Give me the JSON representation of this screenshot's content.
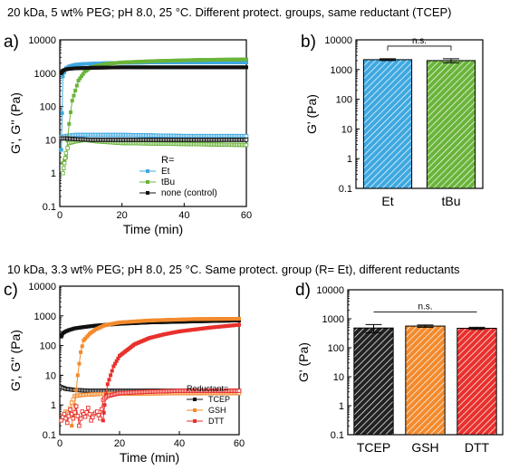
{
  "figure": {
    "row1_condition": "20 kDa, 5 wt% PEG; pH 8.0, 25 °C. Different protect. groups, same reductant (TCEP)",
    "row2_condition": "10 kDa, 3.3 wt% PEG; pH 8.0, 25 °C. Same protect. group (R= Et), different reductants"
  },
  "colors": {
    "Et": "#3ea8e0",
    "tBu": "#6ab43a",
    "none": "#111111",
    "TCEP": "#111111",
    "GSH": "#f38a2c",
    "DTT": "#e8302c"
  },
  "chart_data": [
    {
      "panel": "a)",
      "type": "scatter",
      "xlabel": "Time (min)",
      "ylabel": "G', G'' (Pa)",
      "yscale": "log",
      "xlim": [
        0,
        60
      ],
      "ylim": [
        0.1,
        10000
      ],
      "xticks": [
        "0",
        "20",
        "40",
        "60"
      ],
      "yticks": [
        "0.1",
        "1",
        "10",
        "100",
        "1000",
        "10000"
      ],
      "legend_title": "R=",
      "legend_position": "bottom-right",
      "series": [
        {
          "name": "Et",
          "color_key": "Et",
          "modulus": "G'",
          "marker": "filled",
          "x": [
            0.5,
            1,
            2,
            3,
            5,
            8,
            15,
            30,
            45,
            60
          ],
          "y": [
            5,
            800,
            1400,
            1600,
            1800,
            1900,
            2000,
            2100,
            2100,
            2100
          ]
        },
        {
          "name": "",
          "color_key": "Et",
          "modulus": "G''",
          "marker": "open",
          "x": [
            0.5,
            2,
            5,
            10,
            20,
            40,
            60
          ],
          "y": [
            12,
            13,
            14,
            14,
            14,
            13,
            13
          ]
        },
        {
          "name": "tBu",
          "color_key": "tBu",
          "modulus": "G'",
          "marker": "filled",
          "x": [
            1,
            2,
            3,
            4,
            6,
            8,
            10,
            15,
            20,
            30,
            45,
            60
          ],
          "y": [
            2,
            3,
            30,
            150,
            600,
            1100,
            1500,
            1900,
            2100,
            2300,
            2500,
            2600
          ]
        },
        {
          "name": "",
          "color_key": "tBu",
          "modulus": "G''",
          "marker": "open",
          "x": [
            1,
            1.5,
            2,
            3,
            5,
            8,
            12,
            20,
            40,
            60
          ],
          "y": [
            1,
            2,
            4,
            8,
            9,
            10,
            9,
            8,
            7.5,
            7
          ]
        },
        {
          "name": "none (control)",
          "color_key": "none",
          "modulus": "G'",
          "marker": "filled",
          "x": [
            0.5,
            1,
            2,
            3,
            5,
            10,
            20,
            40,
            60
          ],
          "y": [
            1000,
            1200,
            1300,
            1350,
            1400,
            1450,
            1500,
            1500,
            1500
          ]
        },
        {
          "name": "",
          "color_key": "none",
          "modulus": "G''",
          "marker": "open",
          "x": [
            0.5,
            2,
            5,
            10,
            20,
            40,
            60
          ],
          "y": [
            11,
            11,
            10.5,
            10,
            10,
            10,
            10
          ]
        }
      ]
    },
    {
      "panel": "b)",
      "type": "bar",
      "ylabel": "G' (Pa)",
      "yscale": "log",
      "ylim": [
        0.1,
        10000
      ],
      "yticks": [
        "0.1",
        "1",
        "10",
        "100",
        "1000",
        "10000"
      ],
      "categories": [
        "Et",
        "tBu"
      ],
      "values": [
        2150,
        2000
      ],
      "errors": [
        150,
        300
      ],
      "color_keys": [
        "Et",
        "tBu"
      ],
      "significance": "n.s."
    },
    {
      "panel": "c)",
      "type": "scatter",
      "xlabel": "Time (min)",
      "ylabel": "G', G'' (Pa)",
      "yscale": "log",
      "xlim": [
        0,
        60
      ],
      "ylim": [
        0.1,
        10000
      ],
      "xticks": [
        "0",
        "20",
        "40",
        "60"
      ],
      "yticks": [
        "0.1",
        "1",
        "10",
        "100",
        "1000",
        "10000"
      ],
      "legend_title": "Reductant=",
      "legend_position": "bottom-right",
      "series": [
        {
          "name": "TCEP",
          "color_key": "TCEP",
          "modulus": "G'",
          "marker": "filled",
          "x": [
            0.5,
            1,
            2,
            3,
            5,
            8,
            12,
            20,
            30,
            45,
            60
          ],
          "y": [
            200,
            260,
            300,
            330,
            380,
            420,
            470,
            540,
            600,
            650,
            700
          ]
        },
        {
          "name": "",
          "color_key": "TCEP",
          "modulus": "G''",
          "marker": "open",
          "x": [
            0.5,
            2,
            5,
            10,
            20,
            40,
            60
          ],
          "y": [
            4,
            3.5,
            3.2,
            3,
            3,
            3,
            3
          ]
        },
        {
          "name": "GSH",
          "color_key": "GSH",
          "modulus": "G'",
          "marker": "filled",
          "x": [
            4,
            5,
            6,
            7,
            8,
            10,
            12,
            15,
            20,
            30,
            45,
            60
          ],
          "y": [
            0.2,
            1,
            10,
            60,
            150,
            250,
            350,
            480,
            600,
            700,
            780,
            800
          ]
        },
        {
          "name": "",
          "color_key": "GSH",
          "modulus": "G''",
          "marker": "open",
          "x": [
            1,
            2,
            3,
            4,
            5,
            8,
            12,
            20,
            40,
            60
          ],
          "y": [
            0.4,
            0.6,
            0.5,
            1.2,
            2,
            2.2,
            2.3,
            2.4,
            2.5,
            2.5
          ]
        },
        {
          "name": "DTT",
          "color_key": "DTT",
          "modulus": "G'",
          "marker": "filled",
          "x": [
            14.5,
            15,
            16,
            18,
            20,
            25,
            30,
            35,
            40,
            50,
            60
          ],
          "y": [
            0.3,
            1,
            5,
            20,
            45,
            110,
            180,
            240,
            300,
            400,
            500
          ]
        },
        {
          "name": "",
          "color_key": "DTT",
          "modulus": "G''",
          "marker": "open",
          "x": [
            0.5,
            1.5,
            2.5,
            3.5,
            4.5,
            5.5,
            6.5,
            7.5,
            8.5,
            9.5,
            10.5,
            11.5,
            12.5,
            13.5,
            14.5,
            16,
            20,
            30,
            40,
            60
          ],
          "y": [
            0.3,
            0.5,
            0.25,
            0.7,
            0.35,
            0.9,
            0.2,
            0.6,
            0.4,
            0.8,
            0.3,
            0.5,
            0.6,
            0.35,
            1.5,
            2,
            2.5,
            2.8,
            3,
            3
          ]
        }
      ]
    },
    {
      "panel": "d)",
      "type": "bar",
      "ylabel": "G' (Pa)",
      "yscale": "log",
      "ylim": [
        0.1,
        10000
      ],
      "yticks": [
        "0.1",
        "1",
        "10",
        "100",
        "1000",
        "10000"
      ],
      "categories": [
        "TCEP",
        "GSH",
        "DTT"
      ],
      "values": [
        480,
        560,
        470
      ],
      "errors": [
        150,
        50,
        40
      ],
      "color_keys": [
        "TCEP",
        "GSH",
        "DTT"
      ],
      "significance": "n.s."
    }
  ]
}
